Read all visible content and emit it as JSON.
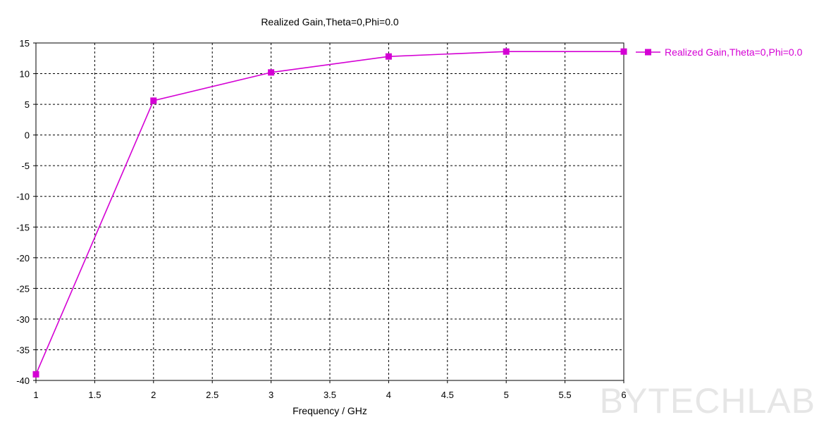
{
  "chart_data": {
    "type": "line",
    "title": "Realized Gain,Theta=0,Phi=0.0",
    "xlabel": "Frequency / GHz",
    "ylabel": "",
    "xlim": [
      1,
      6
    ],
    "ylim": [
      -40,
      15
    ],
    "x_ticks": [
      1,
      1.5,
      2,
      2.5,
      3,
      3.5,
      4,
      4.5,
      5,
      5.5,
      6
    ],
    "y_ticks": [
      15,
      10,
      5,
      0,
      -5,
      -10,
      -15,
      -20,
      -25,
      -30,
      -35,
      -40
    ],
    "grid": true,
    "legend_position": "right",
    "series": [
      {
        "name": "Realized Gain,Theta=0,Phi=0.0",
        "color": "#d400d4",
        "marker": "square",
        "x": [
          1,
          2,
          3,
          4,
          5,
          6
        ],
        "y": [
          -39,
          5.6,
          10.2,
          12.8,
          13.6,
          13.6
        ]
      }
    ]
  },
  "watermark": "BYTECHLAB"
}
